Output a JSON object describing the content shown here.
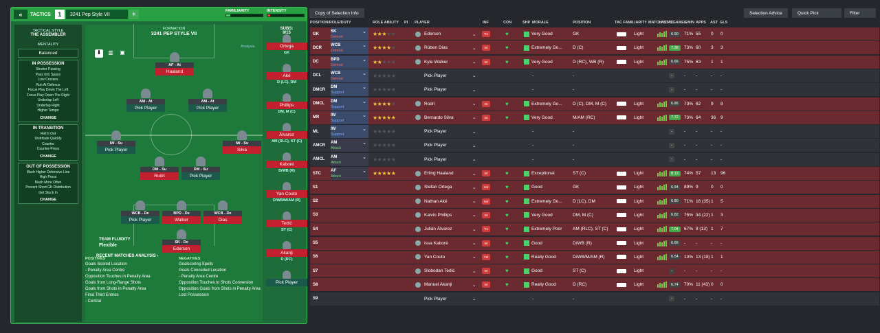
{
  "tactics": {
    "back": "«",
    "title": "TACTICS",
    "slot": "1",
    "name": "3241 Pep Style VII",
    "plus": "+",
    "familiarity": "FAMILIARITY",
    "intensity": "INTENSITY"
  },
  "side": {
    "style_label": "TACTICAL STYLE",
    "style": "THE ASSEMBLER",
    "mentality_label": "MENTALITY",
    "mentality": "Balanced",
    "in_possession": "IN POSSESSION",
    "inpos": [
      "Shorter Passing",
      "Pass Into Space",
      "Low Crosses",
      "Run At Defence",
      "Focus Play Down The Left",
      "Focus Play Down The Right",
      "Underlap Left",
      "Underlap Right",
      "Higher Tempo"
    ],
    "in_transition": "IN TRANSITION",
    "trans": [
      "Roll It Out",
      "Distribute Quickly",
      "Counter",
      "Counter-Press"
    ],
    "out_possession": "OUT OF POSSESSION",
    "outpos": [
      "Much Higher Defensive Line",
      "High Press",
      "Much More Often",
      "Prevent Short GK Distribution",
      "Get Stuck In"
    ],
    "change": "CHANGE"
  },
  "pitch": {
    "formation_label": "FORMATION",
    "formation": "3241 PEP STYLE VII",
    "analysis": "Analysis",
    "subs_label": "SUBS:",
    "subs": "9/15",
    "players": [
      {
        "role": "AF - At",
        "name": "Haaland"
      },
      {
        "role": "AM - At",
        "name": "Pick Player"
      },
      {
        "role": "AM - At",
        "name": "Pick Player"
      },
      {
        "role": "IW - Su",
        "name": "Pick Player"
      },
      {
        "role": "IW - Su",
        "name": "Silva"
      },
      {
        "role": "DM - Su",
        "name": "Rodri"
      },
      {
        "role": "DM - Su",
        "name": "Pick Player"
      },
      {
        "role": "WCB - De",
        "name": "Pick Player"
      },
      {
        "role": "BPD - De",
        "name": "Walker"
      },
      {
        "role": "WCB - De",
        "name": "Dias"
      },
      {
        "role": "SK - De",
        "name": "Ederson"
      }
    ],
    "fluidity_label": "TEAM FLUIDITY",
    "fluidity": "Flexible",
    "recent": "RECENT MATCHES ANALYSIS ›"
  },
  "subs": [
    {
      "name": "Ortega",
      "pos": "GK"
    },
    {
      "name": "Aké",
      "pos": "D (LC), DM"
    },
    {
      "name": "Phillips",
      "pos": "DM, M (C)"
    },
    {
      "name": "Álvarez",
      "pos": "AM (RLC), ST (C)"
    },
    {
      "name": "Kaboré",
      "pos": "D/WB (R)"
    },
    {
      "name": "Yan Couto",
      "pos": "D/WB/M/AM (R)"
    },
    {
      "name": "Tedić",
      "pos": "ST (C)"
    },
    {
      "name": "Akanji",
      "pos": "D (RC)"
    },
    {
      "name": "Pick Player",
      "pos": ""
    }
  ],
  "analysis": {
    "pos_label": "POSITIVES",
    "neg_label": "NEGATIVES",
    "positives": [
      "Goals Scored Location",
      "- Penalty Area Centre",
      "Opposition Touches in Penalty Area",
      "Goals from Long-Range Shots",
      "Goals from Shots in Penalty Area",
      "Final Third Entries",
      "- Central"
    ],
    "negatives": [
      "Goalscoring Spells",
      "Goals Conceded Location",
      "- Penalty Area Centre",
      "Opposition Touches to Shots Conversion",
      "Opposition Goals from Shots in Penalty Area",
      "Lost Possession"
    ]
  },
  "toolbar": {
    "copy": "Copy of Selection Info",
    "advice": "Selection Advice",
    "quick": "Quick Pick",
    "filter": "Filter"
  },
  "headers": {
    "pos": "POSITION/ROLE/DUTY",
    "ra": "ROLE ABILITY",
    "pi": "PI",
    "player": "PLAYER",
    "inf": "INF",
    "con": "CON",
    "shp": "SHP",
    "morale": "MORALE",
    "position": "POSITION",
    "tac": "TAC FAMILIARITY",
    "match": "MATCH LOAD",
    "last5": "LAST 5 GAMES",
    "gwin": "GWIN",
    "apps": "APPS",
    "ast": "AST",
    "gls": "GLS"
  },
  "rows": [
    {
      "pos": "GK",
      "role": "SK",
      "duty": "Defend",
      "stars": 3,
      "player": "Ederson",
      "inf": "Trv",
      "morale": "Very Good",
      "position": "GK",
      "load": "Light",
      "rating": "6.90",
      "gwin": "71%",
      "apps": "55",
      "ast": "0",
      "gls": "0"
    },
    {
      "pos": "DCR",
      "role": "WCB",
      "duty": "Defend",
      "stars": 4,
      "player": "Rúben Dias",
      "inf": "Int",
      "morale": "Extremely Go...",
      "position": "D (C)",
      "load": "Light",
      "rating": "7.38",
      "gwin": "73%",
      "apps": "60",
      "ast": "3",
      "gls": "3"
    },
    {
      "pos": "DC",
      "role": "BPD",
      "duty": "Defend",
      "stars": 2,
      "player": "Kyle Walker",
      "inf": "Int",
      "morale": "Very Good",
      "position": "D (RC), WB (R)",
      "load": "Light",
      "rating": "6.66",
      "gwin": "75%",
      "apps": "63",
      "ast": "1",
      "gls": "1"
    },
    {
      "pos": "DCL",
      "role": "WCB",
      "duty": "Defend",
      "stars": 0,
      "player": "Pick Player",
      "inf": "",
      "morale": "-",
      "position": "-",
      "load": "",
      "rating": "-",
      "gwin": "-",
      "apps": "-",
      "ast": "-",
      "gls": "-"
    },
    {
      "pos": "DMCR",
      "role": "DM",
      "duty": "Support",
      "stars": 0,
      "player": "Pick Player",
      "inf": "",
      "morale": "-",
      "position": "-",
      "load": "",
      "rating": "-",
      "gwin": "-",
      "apps": "-",
      "ast": "-",
      "gls": "-"
    },
    {
      "pos": "DMCL",
      "role": "DM",
      "duty": "Support",
      "stars": 4,
      "player": "Rodri",
      "inf": "Int",
      "morale": "Extremely Go...",
      "position": "D (C), DM, M (C)",
      "load": "Light",
      "rating": "6.86",
      "gwin": "73%",
      "apps": "62",
      "ast": "9",
      "gls": "8"
    },
    {
      "pos": "MR",
      "role": "IW",
      "duty": "Support",
      "stars": 5,
      "player": "Bernardo Silva",
      "inf": "Int",
      "morale": "Very Good",
      "position": "M/AM (RC)",
      "load": "Light",
      "rating": "7.72",
      "gwin": "73%",
      "apps": "64",
      "ast": "36",
      "gls": "9"
    },
    {
      "pos": "ML",
      "role": "IW",
      "duty": "Support",
      "stars": 0,
      "player": "Pick Player",
      "inf": "",
      "morale": "-",
      "position": "-",
      "load": "",
      "rating": "-",
      "gwin": "-",
      "apps": "-",
      "ast": "-",
      "gls": "-"
    },
    {
      "pos": "AMCR",
      "role": "AM",
      "duty": "Attack",
      "stars": 0,
      "player": "Pick Player",
      "inf": "",
      "morale": "-",
      "position": "-",
      "load": "",
      "rating": "-",
      "gwin": "-",
      "apps": "-",
      "ast": "-",
      "gls": "-"
    },
    {
      "pos": "AMCL",
      "role": "AM",
      "duty": "Attack",
      "stars": 0,
      "player": "Pick Player",
      "inf": "",
      "morale": "-",
      "position": "-",
      "load": "",
      "rating": "-",
      "gwin": "-",
      "apps": "-",
      "ast": "-",
      "gls": "-"
    },
    {
      "pos": "STC",
      "role": "AF",
      "duty": "Attack",
      "stars": 5,
      "player": "Erling Haaland",
      "inf": "Int",
      "morale": "Exceptional",
      "position": "ST (C)",
      "load": "Light",
      "rating": "8.13",
      "gwin": "74%",
      "apps": "57",
      "ast": "13",
      "gls": "96"
    },
    {
      "pos": "S1",
      "role": "",
      "duty": "",
      "stars": -1,
      "player": "Stefan Ortega",
      "inf": "Hol",
      "morale": "Good",
      "position": "GK",
      "load": "Light",
      "rating": "6.94",
      "gwin": "89%",
      "apps": "9",
      "ast": "0",
      "gls": "0"
    },
    {
      "pos": "S2",
      "role": "",
      "duty": "",
      "stars": -1,
      "player": "Nathan Aké",
      "inf": "Hol",
      "morale": "Extremely Go...",
      "position": "D (LC), DM",
      "load": "Light",
      "rating": "6.80",
      "gwin": "71%",
      "apps": "16 (35)",
      "ast": "1",
      "gls": "5"
    },
    {
      "pos": "S3",
      "role": "",
      "duty": "",
      "stars": -1,
      "player": "Kalvin Phillips",
      "inf": "Int",
      "morale": "Very Good",
      "position": "DM, M (C)",
      "load": "Light",
      "rating": "6.82",
      "gwin": "75%",
      "apps": "34 (22)",
      "ast": "1",
      "gls": "3"
    },
    {
      "pos": "S4",
      "role": "",
      "duty": "",
      "stars": -1,
      "player": "Julián Álvarez",
      "inf": "Trv",
      "morale": "Extremely Poor",
      "position": "AM (RLC), ST (C)",
      "load": "Light",
      "rating": "7.04",
      "gwin": "67%",
      "apps": "8 (13)",
      "ast": "1",
      "gls": "7"
    },
    {
      "pos": "S5",
      "role": "",
      "duty": "",
      "stars": -1,
      "player": "Issa Kaboré",
      "inf": "Int",
      "morale": "Good",
      "position": "D/WB (R)",
      "load": "Light",
      "rating": "6.66",
      "gwin": "-",
      "apps": "-",
      "ast": "-",
      "gls": "-"
    },
    {
      "pos": "S6",
      "role": "",
      "duty": "",
      "stars": -1,
      "player": "Yan Couto",
      "inf": "Yth",
      "morale": "Really Good",
      "position": "D/WB/M/AM (R)",
      "load": "Light",
      "rating": "6.54",
      "gwin": "13%",
      "apps": "13 (18)",
      "ast": "1",
      "gls": "1"
    },
    {
      "pos": "S7",
      "role": "",
      "duty": "",
      "stars": -1,
      "player": "Slobodan Tedić",
      "inf": "Int",
      "morale": "Good",
      "position": "ST (C)",
      "load": "Light",
      "rating": "-",
      "gwin": "-",
      "apps": "-",
      "ast": "-",
      "gls": "-"
    },
    {
      "pos": "S8",
      "role": "",
      "duty": "",
      "stars": -1,
      "player": "Manuel Akanji",
      "inf": "Int",
      "morale": "Really Good",
      "position": "D (RC)",
      "load": "Light",
      "rating": "6.74",
      "gwin": "70%",
      "apps": "11 (43)",
      "ast": "0",
      "gls": "0"
    },
    {
      "pos": "S9",
      "role": "",
      "duty": "",
      "stars": -1,
      "player": "Pick Player",
      "inf": "",
      "morale": "-",
      "position": "-",
      "load": "",
      "rating": "-",
      "gwin": "-",
      "apps": "-",
      "ast": "-",
      "gls": "-"
    }
  ]
}
